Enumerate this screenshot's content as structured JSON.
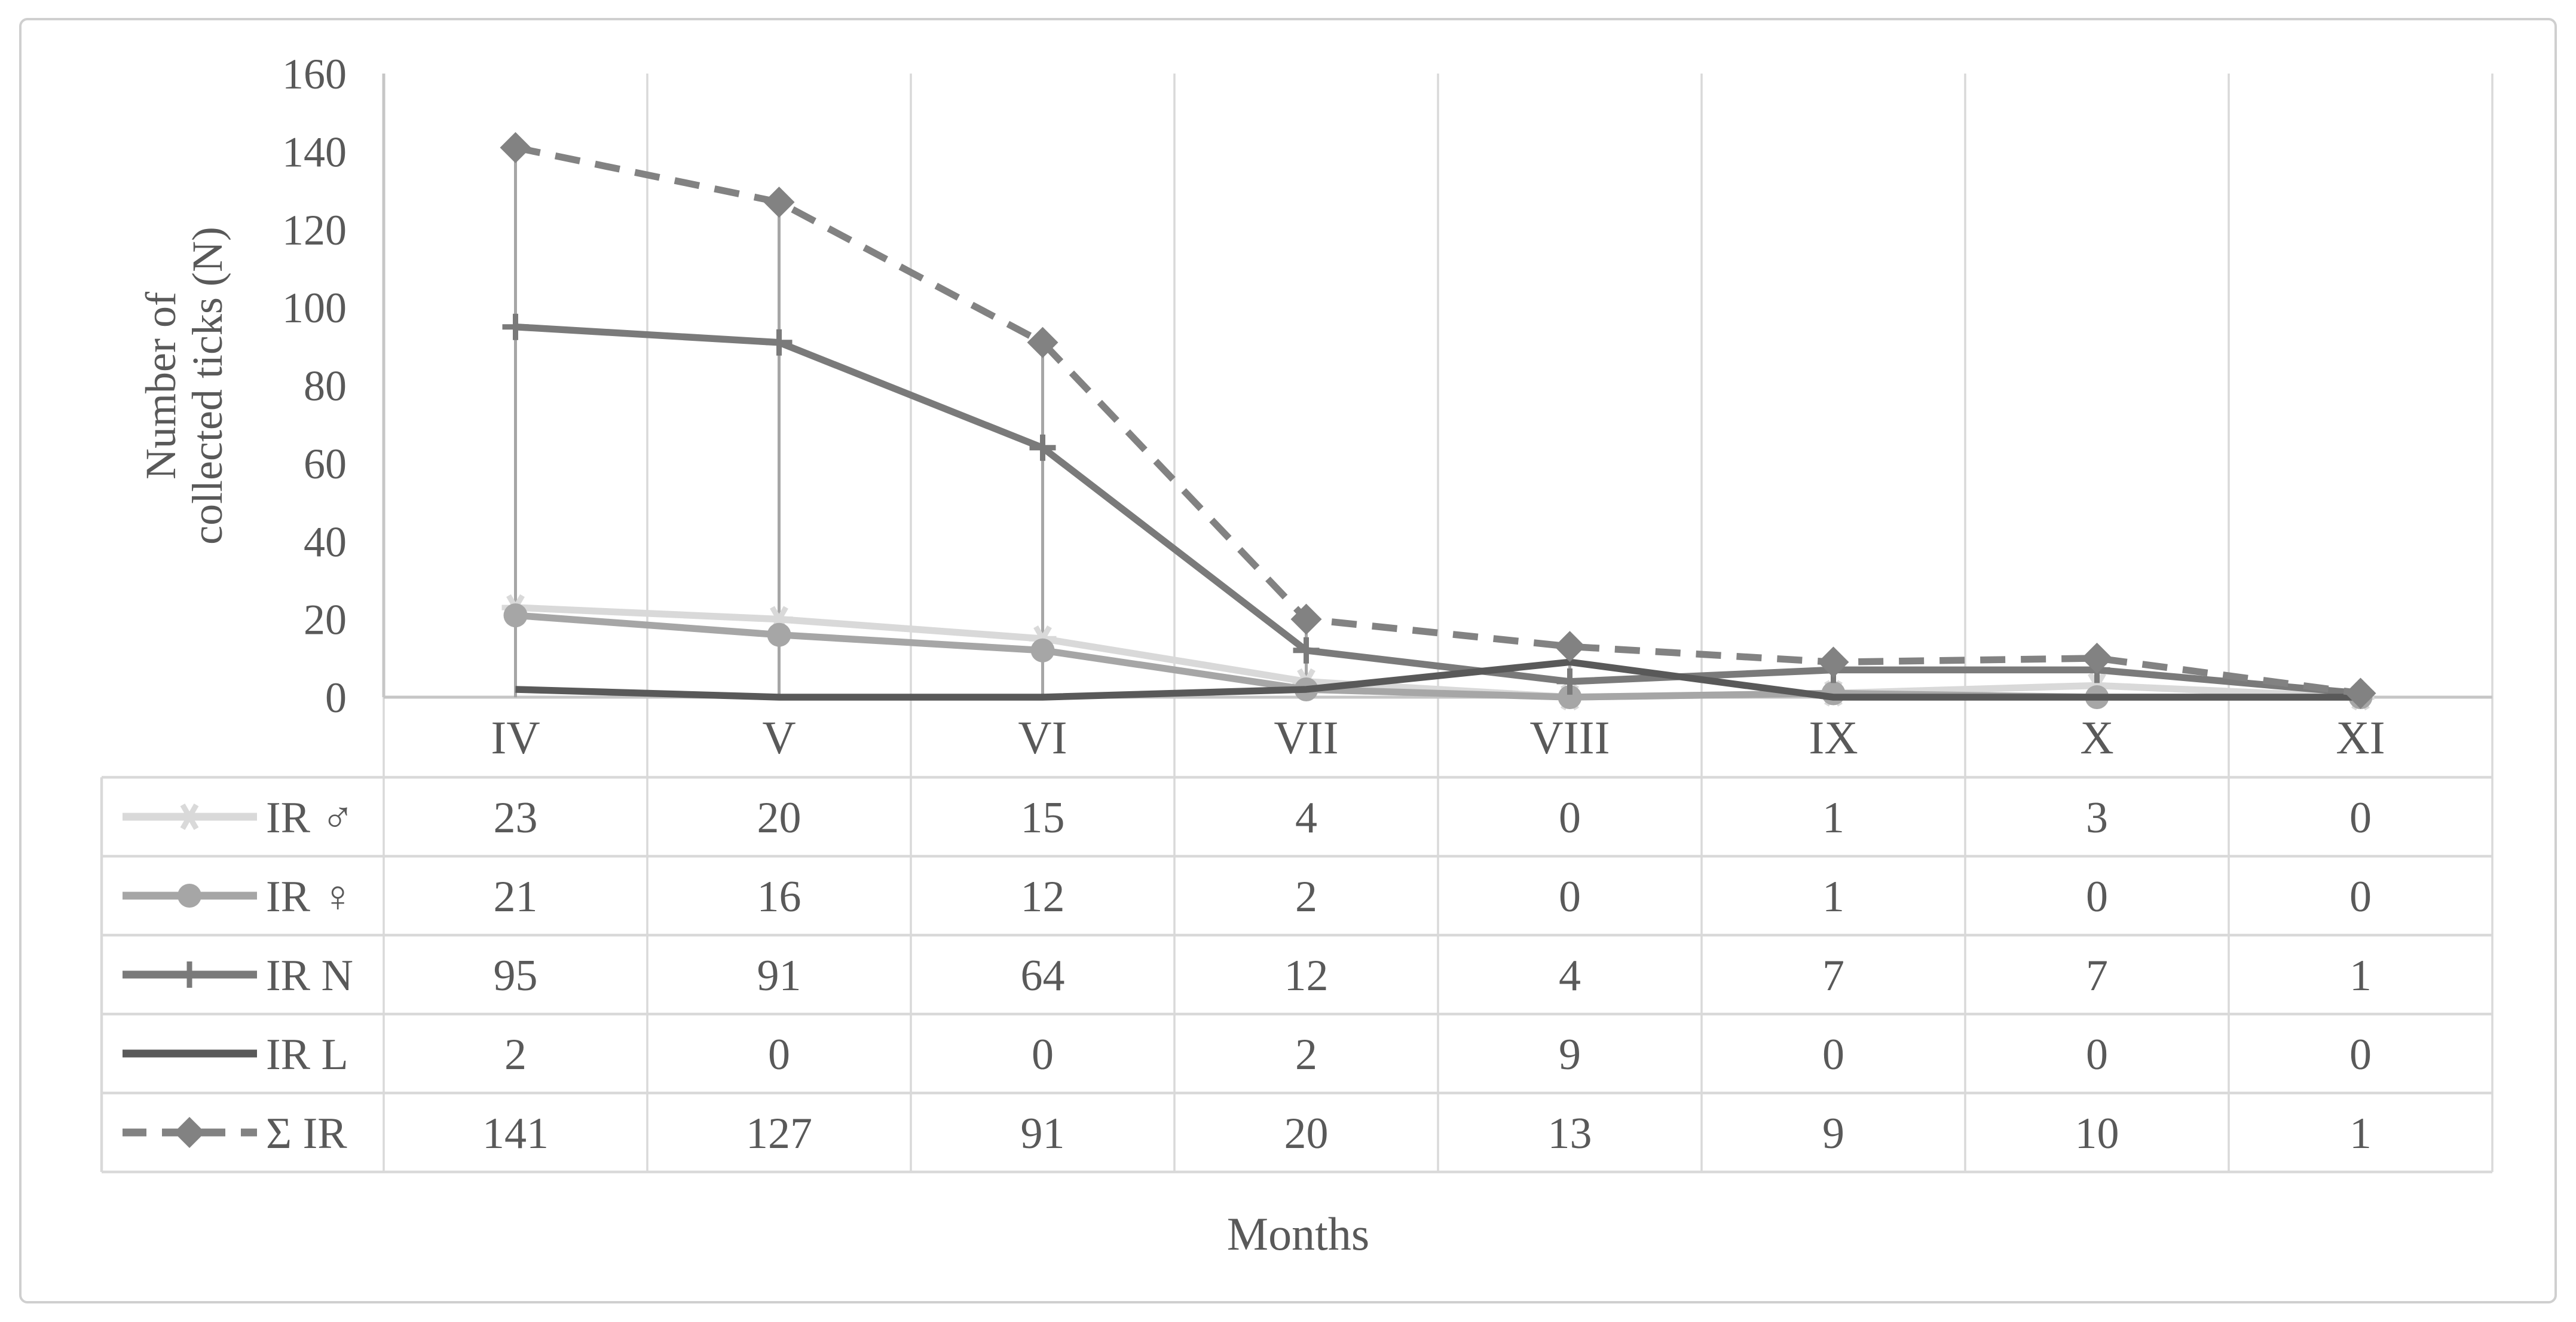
{
  "figure": {
    "ylabel_line1": "Number of",
    "ylabel_line2": "collected ticks (N)",
    "xlabel": "Months"
  },
  "chart_data": {
    "type": "line",
    "categories": [
      "IV",
      "V",
      "VI",
      "VII",
      "VIII",
      "IX",
      "X",
      "XI"
    ],
    "series": [
      {
        "key": "ir-male",
        "name": "IR ♂",
        "marker": "star6",
        "dash": "solid",
        "color": "#d9d9d9",
        "values": [
          23,
          20,
          15,
          4,
          0,
          1,
          3,
          0
        ]
      },
      {
        "key": "ir-female",
        "name": "IR ♀",
        "marker": "circle",
        "dash": "solid",
        "color": "#a6a6a6",
        "values": [
          21,
          16,
          12,
          2,
          0,
          1,
          0,
          0
        ]
      },
      {
        "key": "ir-n",
        "name": "IR N",
        "marker": "plus",
        "dash": "solid",
        "color": "#7a7a7a",
        "values": [
          95,
          91,
          64,
          12,
          4,
          7,
          7,
          1
        ]
      },
      {
        "key": "ir-l",
        "name": "IR L",
        "marker": "none",
        "dash": "solid",
        "color": "#595959",
        "values": [
          2,
          0,
          0,
          2,
          9,
          0,
          0,
          0
        ]
      },
      {
        "key": "sum-ir",
        "name": "Σ IR",
        "marker": "diamond",
        "dash": "dashed",
        "color": "#828282",
        "values": [
          141,
          127,
          91,
          20,
          13,
          9,
          10,
          1
        ]
      }
    ],
    "ylabel": "Number of collected ticks (N)",
    "xlabel": "Months",
    "ylim": [
      0,
      160
    ],
    "ytick_step": 20,
    "grid": "vertical-category-boundaries-only",
    "drop_lines": "vertical gray lines at each category center up to the Σ IR value",
    "legend_position": "table-left-column"
  },
  "colors": {
    "text": "#595959",
    "grid": "#d9d9d9",
    "axis": "#c6c6c6",
    "drop_line": "#a6a6a6",
    "table_border": "#d9d9d9",
    "outer_border": "#cfcfcf",
    "background": "#ffffff"
  }
}
